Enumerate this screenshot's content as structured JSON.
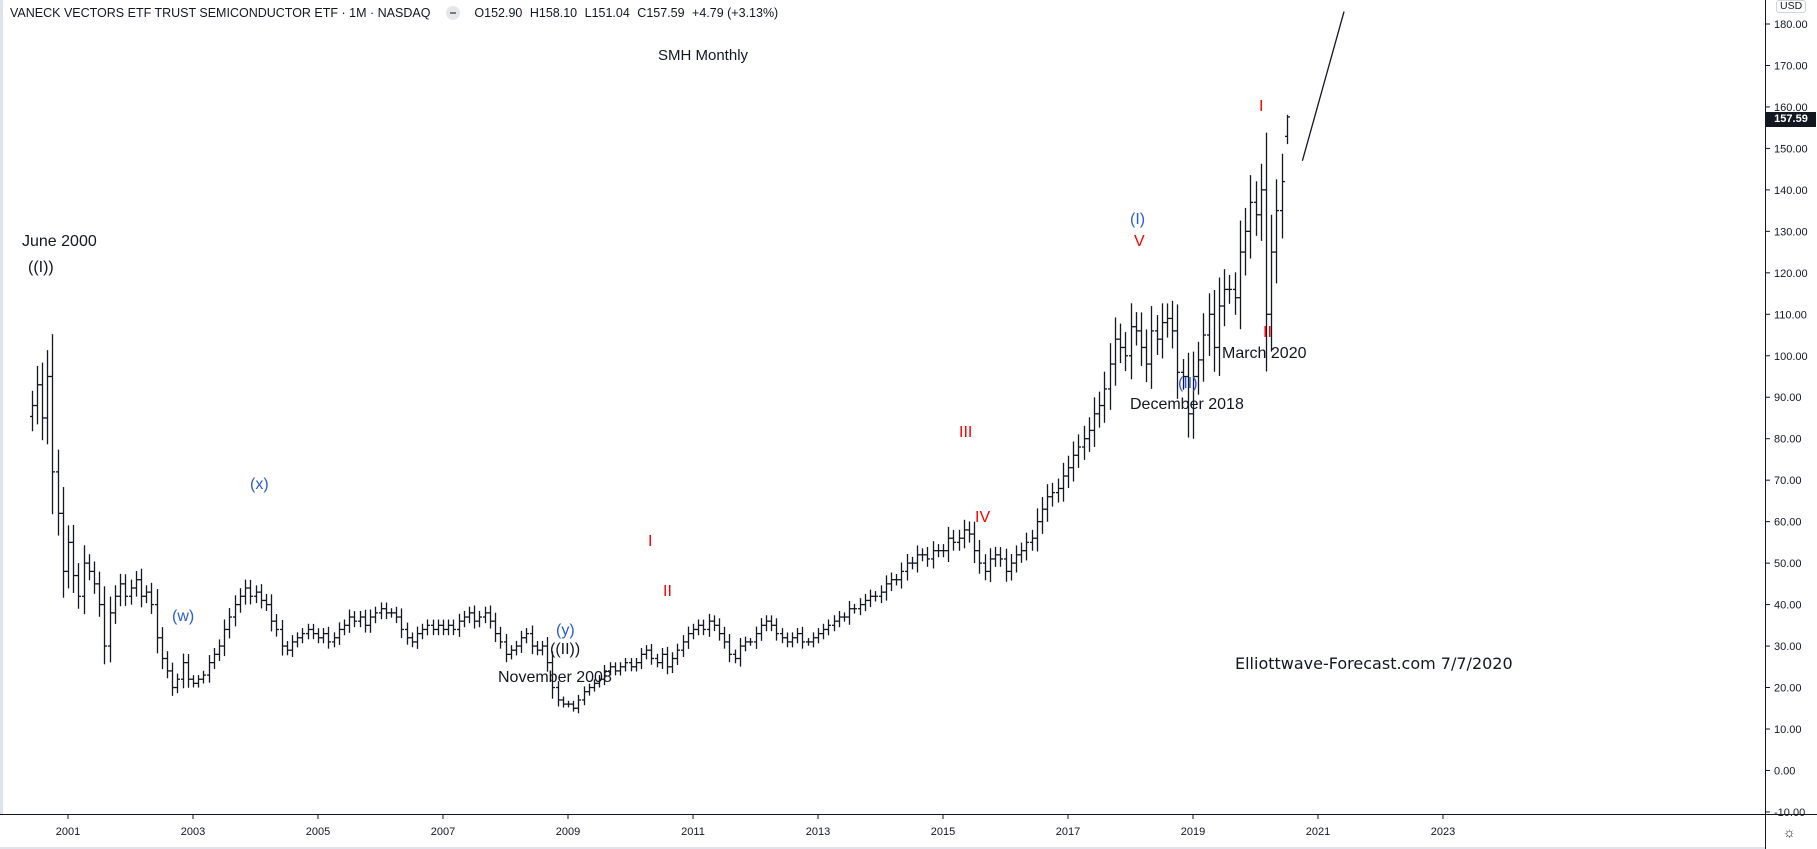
{
  "header": {
    "symbol_title": "VANECK VECTORS ETF TRUST SEMICONDUCTOR ETF · 1M · NASDAQ",
    "open": "O152.90",
    "high": "H158.10",
    "low": "L151.04",
    "close": "C157.59",
    "change": "+4.79 (+3.13%)"
  },
  "price_axis": {
    "currency": "USD",
    "last_price": "157.59",
    "settings_icon": "gear-icon"
  },
  "colors": {
    "bars": "#131722",
    "wave_blue": "#2b5bd7",
    "wave_red": "#ff0000",
    "last_price_bg": "#131722"
  },
  "annotations": {
    "june_2000": "June 2000",
    "wave_i_circle": "((I))",
    "wave_x": "(x)",
    "wave_w": "(w)",
    "wave_y": "(y)",
    "wave_ii_circle": "((II))",
    "november_2008": "November 2008",
    "red_i_2010": "I",
    "red_ii_2010": "II",
    "red_iii": "III",
    "red_iv": "IV",
    "blue_i": "(I)",
    "red_v": "V",
    "blue_ii": "(II)",
    "december_2018": "December 2018",
    "red_i_2020": "I",
    "red_ii_2020": "II",
    "march_2020": "March 2020",
    "watermark": "Elliottwave-Forecast.com 7/7/2020"
  },
  "chart_data": {
    "type": "ohlc-bar",
    "title": "SMH Monthly",
    "interval": "1M",
    "start": "2000-06",
    "ylim": [
      -10,
      185
    ],
    "y_ticks": [
      "-10.00",
      "0.00",
      "10.00",
      "20.00",
      "30.00",
      "40.00",
      "50.00",
      "60.00",
      "70.00",
      "80.00",
      "90.00",
      "100.00",
      "110.00",
      "120.00",
      "130.00",
      "140.00",
      "150.00",
      "160.00",
      "170.00",
      "180.00"
    ],
    "x_ticks": [
      "2001",
      "2003",
      "2005",
      "2007",
      "2009",
      "2011",
      "2013",
      "2015",
      "2017",
      "2019",
      "2021",
      "2023"
    ],
    "grid": false,
    "monthly_close": [
      88,
      93,
      85,
      95,
      72,
      62,
      48,
      55,
      47,
      42,
      50,
      48,
      45,
      40,
      30,
      38,
      42,
      45,
      42,
      44,
      46,
      42,
      43,
      40,
      32,
      27,
      24,
      20,
      22,
      26,
      22,
      21,
      22,
      23,
      26,
      28,
      30,
      34,
      37,
      40,
      42,
      44,
      42,
      43,
      41,
      40,
      36,
      34,
      30,
      29,
      31,
      32,
      33,
      34,
      33,
      32,
      33,
      31,
      32,
      34,
      35,
      37,
      36,
      37,
      35,
      37,
      38,
      39,
      38,
      38,
      37,
      34,
      32,
      31,
      33,
      34,
      35,
      34,
      35,
      34,
      35,
      34,
      36,
      37,
      38,
      36,
      37,
      38,
      36,
      33,
      31,
      28,
      29,
      30,
      32,
      33,
      30,
      29,
      30,
      26,
      20,
      17,
      16,
      16,
      15,
      17,
      19,
      20,
      21,
      22,
      24,
      25,
      24,
      25,
      26,
      25,
      26,
      28,
      29,
      27,
      26,
      28,
      25,
      27,
      29,
      31,
      33,
      34,
      35,
      34,
      36,
      35,
      33,
      31,
      28,
      27,
      30,
      31,
      31,
      33,
      35,
      36,
      35,
      33,
      32,
      31,
      32,
      33,
      31,
      31,
      32,
      33,
      34,
      35,
      36,
      37,
      37,
      39,
      39,
      40,
      41,
      42,
      42,
      43,
      45,
      46,
      46,
      48,
      50,
      50,
      52,
      52,
      51,
      53,
      53,
      53,
      56,
      55,
      56,
      58,
      57,
      53,
      50,
      48,
      51,
      52,
      51,
      48,
      50,
      52,
      53,
      55,
      56,
      60,
      63,
      66,
      67,
      68,
      71,
      73,
      76,
      78,
      80,
      82,
      86,
      88,
      92,
      98,
      104,
      102,
      100,
      107,
      106,
      102,
      98,
      106,
      104,
      108,
      109,
      106,
      96,
      95,
      86,
      95,
      99,
      105,
      110,
      102,
      112,
      116,
      116,
      114,
      125,
      130,
      137,
      134,
      140,
      110,
      125,
      135,
      142,
      157.59
    ],
    "last_bar": {
      "open": 152.9,
      "high": 158.1,
      "low": 151.04,
      "close": 157.59
    },
    "forecast_line": {
      "from": {
        "date": "2020-10",
        "price": 147
      },
      "to": {
        "date": "2021-06",
        "price": 183
      }
    }
  }
}
